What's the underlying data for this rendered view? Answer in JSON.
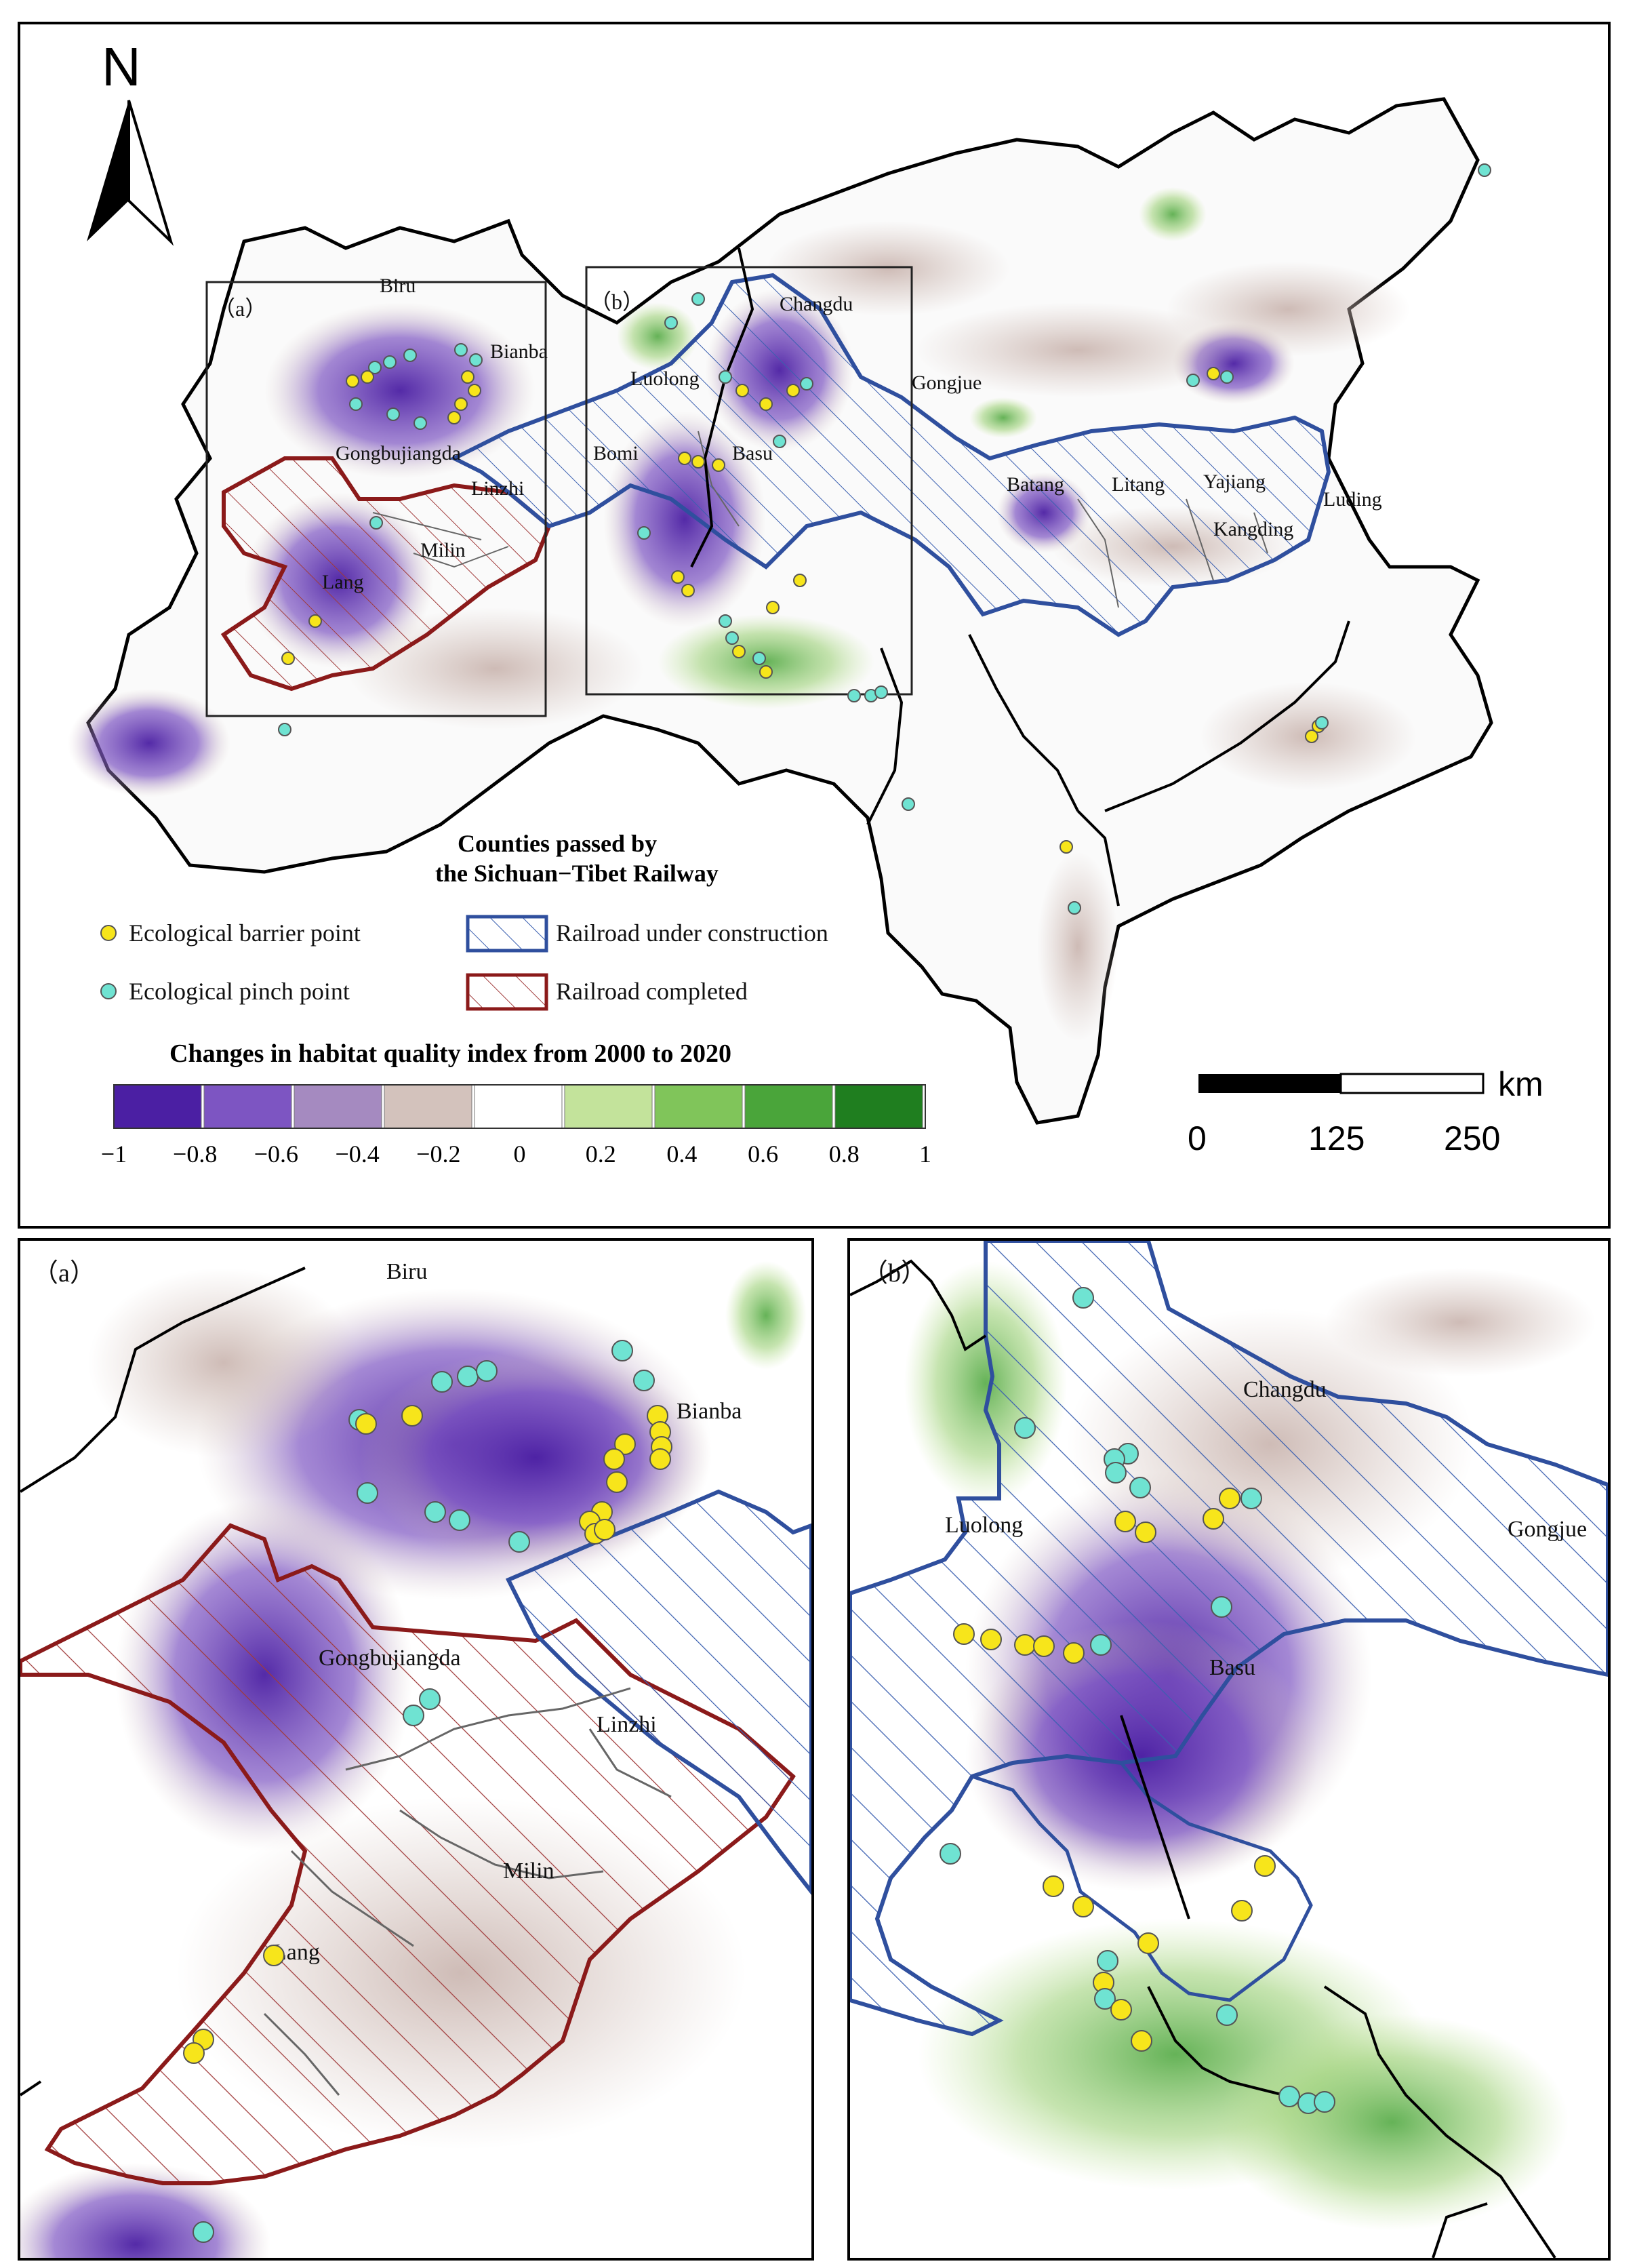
{
  "north_arrow": {
    "label": "N"
  },
  "main": {
    "inset_labels": {
      "a": "（a）",
      "b": "（b）"
    },
    "places": [
      {
        "name": "Biru"
      },
      {
        "name": "Bianba"
      },
      {
        "name": "Changdu"
      },
      {
        "name": "Luolong"
      },
      {
        "name": "Gongjue"
      },
      {
        "name": "Bomi"
      },
      {
        "name": "Basu"
      },
      {
        "name": "Gongbujiangda"
      },
      {
        "name": "Linzhi"
      },
      {
        "name": "Milin"
      },
      {
        "name": "Lang"
      },
      {
        "name": "Batang"
      },
      {
        "name": "Litang"
      },
      {
        "name": "Yajiang"
      },
      {
        "name": "Luding"
      },
      {
        "name": "Kangding"
      }
    ]
  },
  "legend": {
    "counties_title_line1": "Counties passed by",
    "counties_title_line2": "the Sichuan−Tibet Railway",
    "barrier": "Ecological barrier point",
    "pinch": "Ecological pinch point",
    "under_construction": "Railroad under construction",
    "completed": "Railroad completed",
    "colors": {
      "barrier": "#f7e51b",
      "pinch": "#6fe3d2",
      "construction": "#2f4f9e",
      "completed": "#8b1a1a"
    }
  },
  "colorbar": {
    "title": "Changes in habitat quality index from 2000 to 2020",
    "ticks": [
      "−1",
      "−0.8",
      "−0.6",
      "−0.4",
      "−0.2",
      "0",
      "0.2",
      "0.4",
      "0.6",
      "0.8",
      "1"
    ],
    "colors": [
      "#4b1fa3",
      "#7d55c2",
      "#a58ac0",
      "#d3c2bc",
      "#ffffff",
      "#c3e39b",
      "#80c55a",
      "#4aa53a",
      "#1f7e1f"
    ]
  },
  "scalebar": {
    "unit": "km",
    "labels": [
      "0",
      "125",
      "250"
    ]
  },
  "inset_a": {
    "label": "（a）",
    "places": [
      {
        "name": "Biru"
      },
      {
        "name": "Bianba"
      },
      {
        "name": "Gongbujiangda"
      },
      {
        "name": "Linzhi"
      },
      {
        "name": "Milin"
      },
      {
        "name": "Lang"
      }
    ]
  },
  "inset_b": {
    "label": "（b）",
    "places": [
      {
        "name": "Changdu"
      },
      {
        "name": "Luolong"
      },
      {
        "name": "Gongjue"
      },
      {
        "name": "Basu"
      }
    ]
  }
}
